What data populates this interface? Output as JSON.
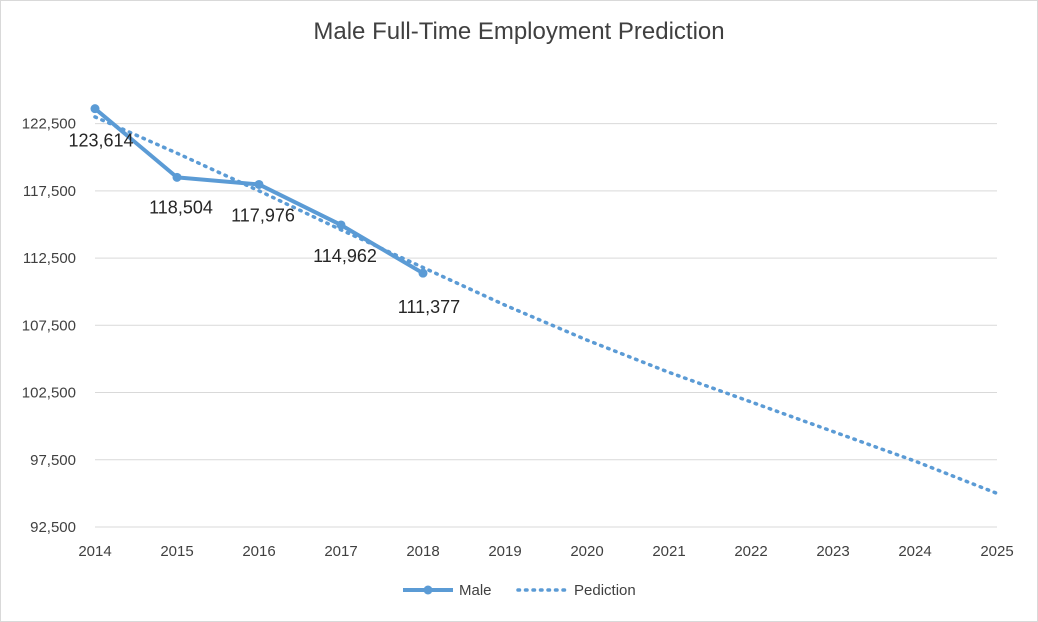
{
  "chart_data": {
    "type": "line",
    "title": "Male Full-Time Employment  Prediction",
    "xlabel": "",
    "ylabel": "",
    "x": [
      2014,
      2015,
      2016,
      2017,
      2018,
      2019,
      2020,
      2021,
      2022,
      2023,
      2024,
      2025
    ],
    "x_tick_labels": [
      "2014",
      "2015",
      "2016",
      "2017",
      "2018",
      "2019",
      "2020",
      "2021",
      "2022",
      "2023",
      "2024",
      "2025"
    ],
    "ylim": [
      92500,
      125000
    ],
    "y_ticks": [
      92500,
      97500,
      102500,
      107500,
      112500,
      117500,
      122500
    ],
    "y_tick_labels": [
      "92,500",
      "97,500",
      "102,500",
      "107,500",
      "112,500",
      "117,500",
      "122,500"
    ],
    "grid": true,
    "legend_position": "bottom",
    "series": [
      {
        "name": "Male",
        "style": "solid-with-markers",
        "color": "#5b9bd5",
        "x": [
          2014,
          2015,
          2016,
          2017,
          2018
        ],
        "values": [
          123614,
          118504,
          117976,
          114962,
          111377
        ],
        "data_labels": [
          "123,614",
          "118,504",
          "117,976",
          "114,962",
          "111,377"
        ]
      },
      {
        "name": "Pediction",
        "style": "dotted",
        "color": "#5b9bd5",
        "x": [
          2014,
          2015,
          2016,
          2017,
          2018,
          2019,
          2020,
          2021,
          2022,
          2023,
          2024,
          2025
        ],
        "values": [
          123000,
          120300,
          117500,
          114600,
          111800,
          109000,
          106400,
          104000,
          101800,
          99600,
          97400,
          95000
        ]
      }
    ]
  }
}
